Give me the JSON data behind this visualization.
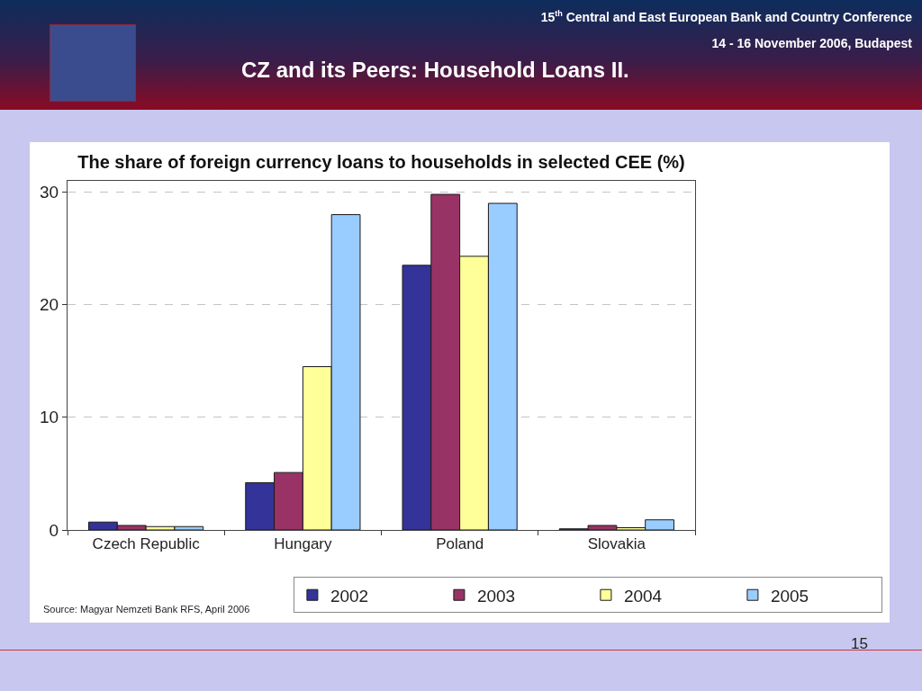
{
  "chart_data": {
    "type": "bar",
    "title": "CZ and its Peers: Household Loans II.",
    "subtitle": "The share of foreign currency loans to households in selected CEE (%)",
    "annotations": [
      "15$^{th}$ Central and East European Bank and Country Conference",
      "14 - 16 November 2006, Budapest",
      "Source: Magyar Nemzeti Bank RFS, April 2006",
      "15"
    ],
    "categories": [
      "Czech Republic",
      "Hungary",
      "Poland",
      "Slovakia"
    ],
    "series": [
      {
        "name": "2002",
        "color": "#333399",
        "values": [
          0.7,
          4.2,
          23.5,
          0.1
        ]
      },
      {
        "name": "2003",
        "color": "#993366",
        "values": [
          0.4,
          5.1,
          29.8,
          0.4
        ]
      },
      {
        "name": "2004",
        "color": "#ffff99",
        "values": [
          0.3,
          14.5,
          24.3,
          0.2
        ]
      },
      {
        "name": "2005",
        "color": "#99ccff",
        "values": [
          0.3,
          28.0,
          29.0,
          0.9
        ]
      }
    ],
    "ylim": [
      0,
      31
    ],
    "yticks": [
      0,
      10,
      20,
      30
    ],
    "grid": "y",
    "legend": "bottom"
  }
}
